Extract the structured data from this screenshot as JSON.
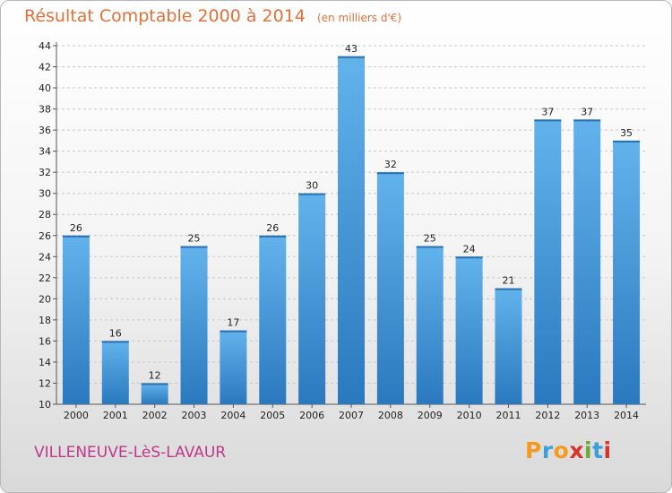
{
  "title": "Résultat Comptable 2000 à 2014",
  "subtitle": "(en milliers d'€)",
  "commune": "VILLENEUVE-LèS-LAVAUR",
  "logo": {
    "letters": [
      "P",
      "r",
      "o",
      "x",
      "i",
      "t",
      "i"
    ],
    "colors": [
      "#f39a1f",
      "#3aa0dd",
      "#f39a1f",
      "#d9342b",
      "#6aa83b",
      "#3aa0dd",
      "#d9342b"
    ]
  },
  "chart_data": {
    "type": "bar",
    "categories": [
      "2000",
      "2001",
      "2002",
      "2003",
      "2004",
      "2005",
      "2006",
      "2007",
      "2008",
      "2009",
      "2010",
      "2011",
      "2012",
      "2013",
      "2014"
    ],
    "values": [
      26,
      16,
      12,
      25,
      17,
      26,
      30,
      43,
      32,
      25,
      24,
      21,
      37,
      37,
      35
    ],
    "title": "Résultat Comptable 2000 à 2014",
    "ylim": [
      10,
      44
    ],
    "yticks": [
      10,
      12,
      14,
      16,
      18,
      20,
      22,
      24,
      26,
      28,
      30,
      32,
      34,
      36,
      38,
      40,
      42,
      44
    ],
    "grid": true,
    "bar_color": "#3b8fd4"
  }
}
